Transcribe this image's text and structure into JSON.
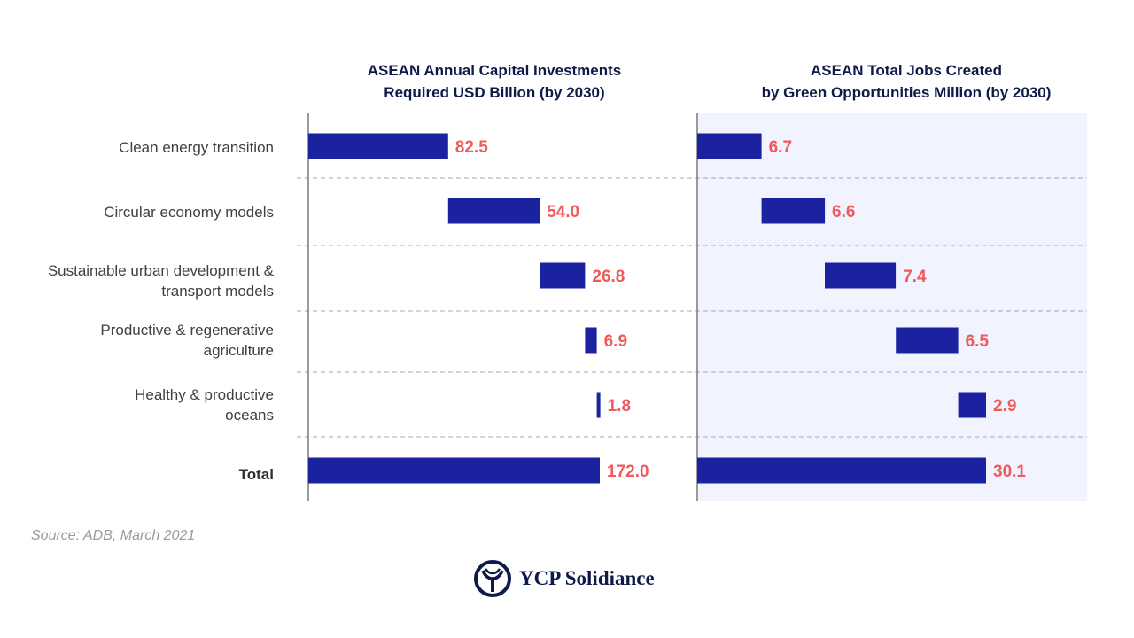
{
  "chart_data": [
    {
      "type": "bar",
      "title": "ASEAN Annual Capital Investments Required USD Billion (by 2030)",
      "categories": [
        "Clean energy transition",
        "Circular economy models",
        "Sustainable urban development & transport models",
        "Productive & regenerative agriculture",
        "Healthy & productive oceans",
        "Total"
      ],
      "values": [
        82.5,
        54.0,
        26.8,
        6.9,
        1.8,
        172.0
      ],
      "value_labels": [
        "82.5",
        "54.0",
        "26.8",
        "6.9",
        "1.8",
        "172.0"
      ],
      "style": "waterfall",
      "xlim": [
        0,
        172.0
      ]
    },
    {
      "type": "bar",
      "title": "ASEAN Total Jobs Created by Green Opportunities Million (by 2030)",
      "categories": [
        "Clean energy transition",
        "Circular economy models",
        "Sustainable urban development & transport models",
        "Productive & regenerative agriculture",
        "Healthy & productive oceans",
        "Total"
      ],
      "values": [
        6.7,
        6.6,
        7.4,
        6.5,
        2.9,
        30.1
      ],
      "value_labels": [
        "6.7",
        "6.6",
        "7.4",
        "6.5",
        "2.9",
        "30.1"
      ],
      "style": "waterfall",
      "xlim": [
        0,
        30.1
      ]
    }
  ],
  "titles": {
    "left_line1": "ASEAN Annual Capital Investments",
    "left_line2": "Required USD Billion (by 2030)",
    "right_line1": "ASEAN Total Jobs Created",
    "right_line2": "by Green Opportunities Million (by 2030)"
  },
  "labels": {
    "cat1": "Clean energy transition",
    "cat2": "Circular economy models",
    "cat3_l1": "Sustainable urban development &",
    "cat3_l2": "transport models",
    "cat4_l1": "Productive & regenerative",
    "cat4_l2": "agriculture",
    "cat5_l1": "Healthy & productive",
    "cat5_l2": "oceans",
    "total": "Total"
  },
  "source": "Source: ADB, March 2021",
  "logo_text": "YCP Solidiance",
  "colors": {
    "bar": "#1a22a0",
    "value_label": "#f05a5a",
    "right_panel_bg": "#f1f3ff",
    "title": "#0e1a4a"
  }
}
